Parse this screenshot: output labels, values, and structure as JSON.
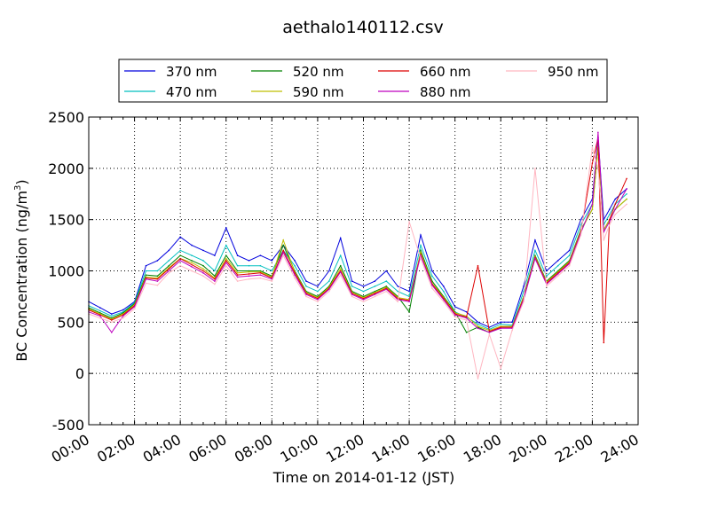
{
  "chart_data": {
    "type": "line",
    "title": "aethalo140112.csv",
    "xlabel": "Time on 2014-01-12 (JST)",
    "ylabel": "BC Concentration (ng/m³)",
    "ylabel_base": "BC Concentration (ng/m",
    "ylabel_sup": "3",
    "ylabel_tail": ")",
    "xlim": [
      "00:00",
      "24:00"
    ],
    "ylim": [
      -500,
      2500
    ],
    "xticks": [
      "00:00",
      "02:00",
      "04:00",
      "06:00",
      "08:00",
      "10:00",
      "12:00",
      "14:00",
      "16:00",
      "18:00",
      "20:00",
      "22:00",
      "24:00"
    ],
    "yticks": [
      -500,
      0,
      500,
      1000,
      1500,
      2000,
      2500
    ],
    "grid": true,
    "legend_position": "top",
    "x_hours": [
      0,
      0.5,
      1,
      1.5,
      2,
      2.5,
      3,
      3.5,
      4,
      4.5,
      5,
      5.5,
      6,
      6.5,
      7,
      7.5,
      8,
      8.5,
      9,
      9.5,
      10,
      10.5,
      11,
      11.5,
      12,
      12.5,
      13,
      13.5,
      14,
      14.5,
      15,
      15.5,
      16,
      16.5,
      17,
      17.5,
      18,
      18.5,
      19,
      19.5,
      20,
      20.5,
      21,
      21.5,
      22,
      22.25,
      22.5,
      22.75,
      23,
      23.5
    ],
    "series": [
      {
        "name": "370 nm",
        "color": "#0000dd",
        "values": [
          700,
          640,
          580,
          620,
          700,
          1050,
          1100,
          1200,
          1330,
          1250,
          1200,
          1150,
          1420,
          1150,
          1100,
          1150,
          1100,
          1250,
          1100,
          900,
          850,
          1000,
          1320,
          900,
          850,
          900,
          1000,
          850,
          800,
          1350,
          1000,
          850,
          650,
          600,
          500,
          450,
          500,
          500,
          850,
          1300,
          1000,
          1100,
          1200,
          1500,
          1700,
          2300,
          1500,
          1600,
          1700,
          1800
        ]
      },
      {
        "name": "470 nm",
        "color": "#00bfbf",
        "values": [
          660,
          610,
          560,
          600,
          690,
          1000,
          1000,
          1100,
          1200,
          1150,
          1100,
          1000,
          1250,
          1050,
          1050,
          1050,
          1000,
          1200,
          1050,
          850,
          800,
          900,
          1150,
          850,
          800,
          850,
          900,
          800,
          750,
          1250,
          950,
          800,
          600,
          550,
          480,
          430,
          480,
          470,
          800,
          1200,
          950,
          1050,
          1150,
          1450,
          1650,
          2250,
          1450,
          1550,
          1650,
          1750
        ]
      },
      {
        "name": "520 nm",
        "color": "#008000",
        "values": [
          640,
          590,
          540,
          590,
          680,
          960,
          950,
          1050,
          1150,
          1100,
          1050,
          950,
          1150,
          1000,
          1000,
          1000,
          950,
          1250,
          1000,
          800,
          750,
          850,
          1050,
          800,
          750,
          800,
          850,
          750,
          600,
          1200,
          900,
          750,
          600,
          400,
          450,
          400,
          450,
          450,
          750,
          1150,
          900,
          1000,
          1100,
          1400,
          1600,
          2200,
          1400,
          1500,
          1600,
          1700
        ]
      },
      {
        "name": "590 nm",
        "color": "#bfbf00",
        "values": [
          630,
          580,
          530,
          580,
          670,
          940,
          930,
          1030,
          1120,
          1080,
          1020,
          930,
          1120,
          980,
          990,
          990,
          940,
          1300,
          990,
          790,
          740,
          840,
          1020,
          790,
          740,
          790,
          840,
          740,
          720,
          1180,
          880,
          740,
          590,
          560,
          460,
          420,
          460,
          460,
          740,
          1140,
          890,
          990,
          1090,
          1390,
          1600,
          2200,
          1400,
          1500,
          1600,
          1700
        ]
      },
      {
        "name": "660 nm",
        "color": "#dd0000",
        "values": [
          620,
          570,
          520,
          570,
          660,
          930,
          920,
          1020,
          1120,
          1060,
          1000,
          920,
          1100,
          960,
          970,
          980,
          930,
          1200,
          980,
          780,
          730,
          830,
          1000,
          780,
          730,
          780,
          830,
          730,
          710,
          1160,
          870,
          730,
          580,
          550,
          1050,
          410,
          450,
          450,
          730,
          1130,
          880,
          980,
          1080,
          1380,
          2050,
          2300,
          300,
          1500,
          1650,
          1900
        ]
      },
      {
        "name": "880 nm",
        "color": "#bf00bf",
        "values": [
          600,
          560,
          400,
          560,
          650,
          920,
          900,
          1000,
          1100,
          1040,
          980,
          900,
          1080,
          940,
          950,
          960,
          920,
          1180,
          960,
          770,
          720,
          820,
          990,
          770,
          720,
          770,
          820,
          720,
          700,
          1150,
          860,
          720,
          570,
          540,
          440,
          400,
          440,
          440,
          720,
          1120,
          870,
          970,
          1070,
          1370,
          1650,
          2350,
          1380,
          1480,
          1600,
          1800
        ]
      },
      {
        "name": "950 nm",
        "color": "#ffb6c1",
        "values": [
          580,
          540,
          500,
          540,
          630,
          880,
          860,
          980,
          1050,
          1000,
          950,
          870,
          1050,
          900,
          920,
          930,
          900,
          1150,
          930,
          750,
          700,
          800,
          960,
          750,
          700,
          750,
          800,
          700,
          1480,
          1120,
          830,
          700,
          550,
          520,
          -50,
          380,
          50,
          420,
          700,
          2000,
          850,
          950,
          1050,
          1350,
          2200,
          2000,
          1300,
          1450,
          1550,
          1650
        ]
      }
    ]
  }
}
